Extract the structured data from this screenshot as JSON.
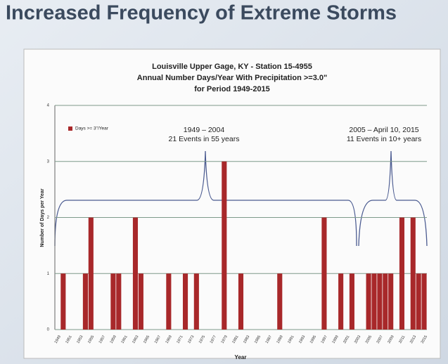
{
  "slide_title": "Increased Frequency of Extreme Storms",
  "chart_data": {
    "type": "bar",
    "title": [
      "Louisville Upper Gage, KY - Station 15-4955",
      "Annual Number Days/Year With Precipitation >=3.0\"",
      "for Period 1949-2015"
    ],
    "y_label": "Number of Days per Year",
    "x_label": "Year",
    "series": [
      {
        "name": "Days >= 3\"/Year",
        "color": "#a8282a",
        "values": [
          0,
          1,
          0,
          0,
          0,
          1,
          2,
          0,
          0,
          0,
          1,
          1,
          0,
          0,
          2,
          1,
          0,
          0,
          0,
          0,
          1,
          0,
          0,
          1,
          0,
          1,
          0,
          0,
          0,
          0,
          3,
          0,
          0,
          1,
          0,
          0,
          0,
          0,
          0,
          0,
          1,
          0,
          0,
          0,
          0,
          0,
          0,
          0,
          2,
          0,
          0,
          1,
          0,
          1,
          0,
          0,
          1,
          1,
          1,
          1,
          1,
          0,
          2,
          0,
          2,
          1,
          1
        ]
      }
    ],
    "categories": [
      "1949",
      null,
      "1951",
      null,
      "1953",
      null,
      "1955",
      null,
      "1957",
      null,
      "1959",
      null,
      "1961",
      null,
      "1963",
      null,
      "1965",
      null,
      "1967",
      null,
      "1969",
      null,
      "1971",
      null,
      "1973",
      null,
      "1975",
      null,
      "1977",
      null,
      "1979",
      null,
      "1981",
      null,
      "1983",
      null,
      "1985",
      null,
      "1987",
      null,
      "1989",
      null,
      "1991",
      null,
      "1993",
      null,
      "1995",
      null,
      "1997",
      null,
      "1999",
      null,
      "2001",
      null,
      "2003",
      null,
      "2005",
      null,
      "2007",
      null,
      "2009",
      null,
      "2011",
      null,
      "2013",
      null,
      "2015"
    ],
    "ylim": [
      0,
      4
    ],
    "yticks": [
      0,
      1,
      2,
      3,
      4
    ],
    "grid": true,
    "legend": "upper left",
    "annotations": [
      {
        "lines": [
          "1949 – 2004",
          "21 Events in 55 years"
        ]
      },
      {
        "lines": [
          "2005 – April 10, 2015",
          "11 Events in 10+ years"
        ]
      }
    ]
  }
}
